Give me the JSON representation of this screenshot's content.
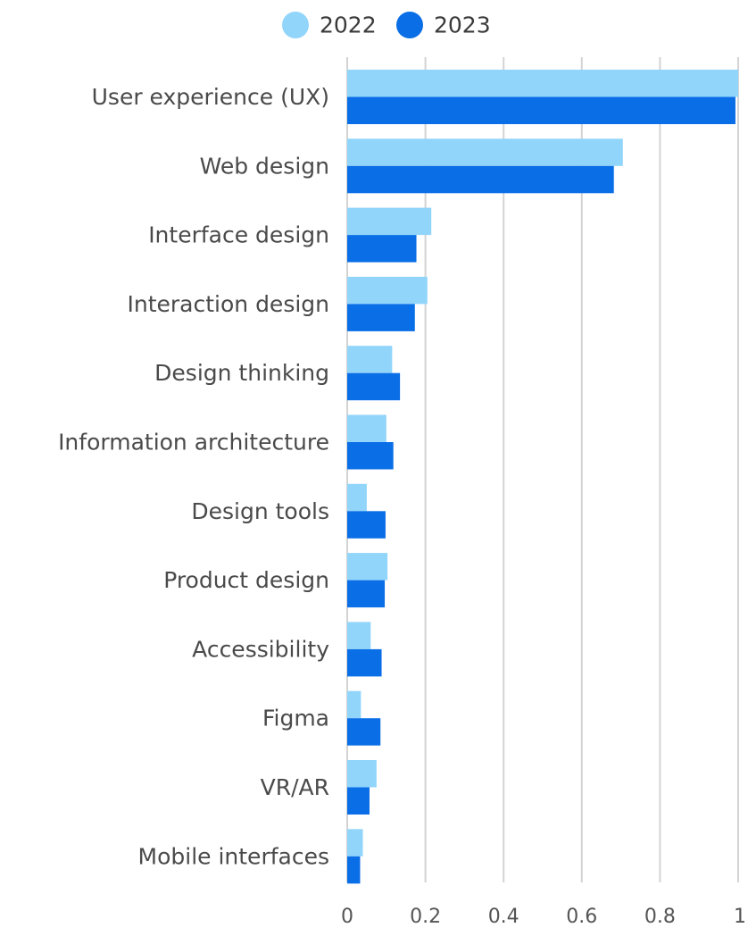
{
  "chart_data": {
    "type": "bar",
    "orientation": "horizontal",
    "categories": [
      "User experience (UX)",
      "Web design",
      "Interface design",
      "Interaction design",
      "Design thinking",
      "Information architecture",
      "Design tools",
      "Product design",
      "Accessibility",
      "Figma",
      "VR/AR",
      "Mobile interfaces"
    ],
    "series": [
      {
        "name": "2022",
        "color": "#91d5fb",
        "values": [
          1.0,
          0.705,
          0.215,
          0.205,
          0.115,
          0.1,
          0.05,
          0.103,
          0.06,
          0.035,
          0.075,
          0.04
        ]
      },
      {
        "name": "2023",
        "color": "#0a6ee6",
        "values": [
          0.993,
          0.682,
          0.177,
          0.173,
          0.135,
          0.118,
          0.098,
          0.096,
          0.088,
          0.085,
          0.057,
          0.033
        ]
      }
    ],
    "xlim": [
      0,
      1
    ],
    "xticks": [
      0,
      0.2,
      0.4,
      0.6,
      0.8,
      1
    ],
    "xtick_labels": [
      "0",
      "0.2",
      "0.4",
      "0.6",
      "0.8",
      "1"
    ],
    "grid": true,
    "legend_position": "top-center",
    "title": "",
    "xlabel": "",
    "ylabel": ""
  }
}
